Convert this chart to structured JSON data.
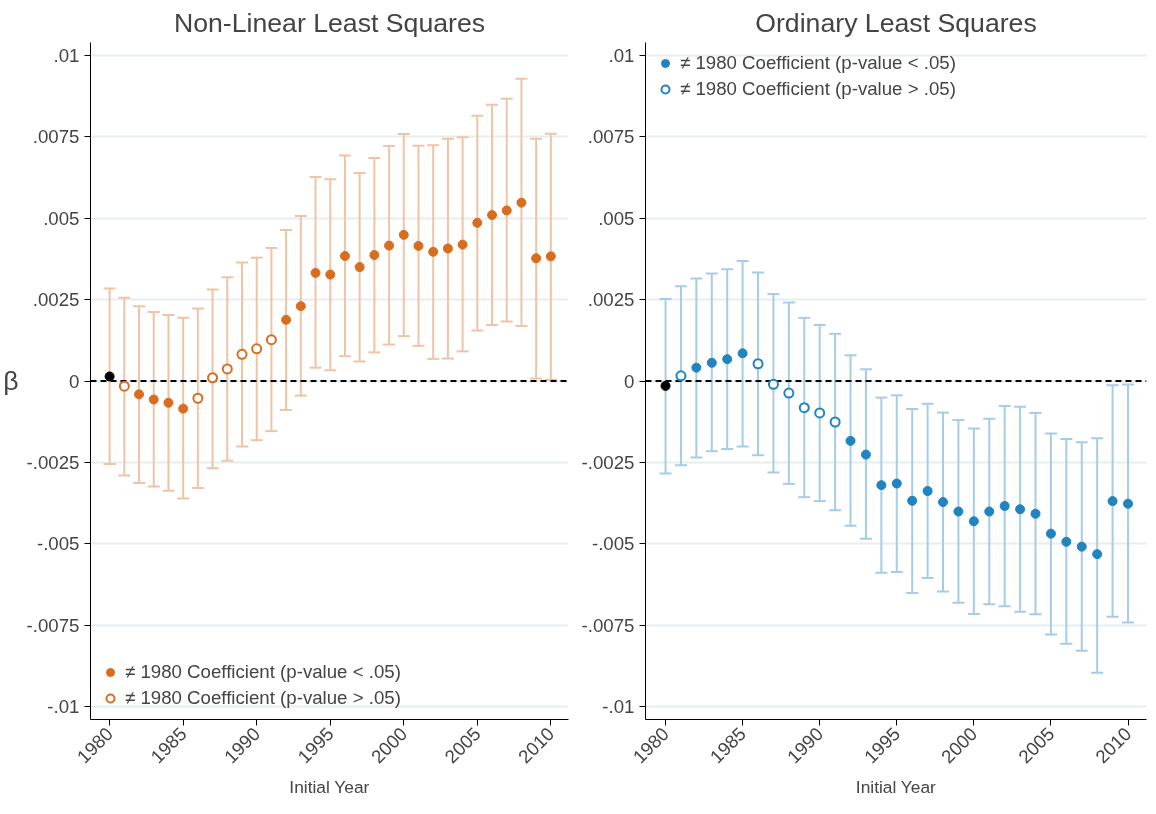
{
  "chart_data": [
    {
      "type": "scatter",
      "title": "Non-Linear Least Squares",
      "xlabel": "Initial Year",
      "ylabel": "β",
      "xlim": [
        1978.7,
        2011.2
      ],
      "ylim": [
        -0.0104,
        0.0104
      ],
      "xticks": [
        1980,
        1985,
        1990,
        1995,
        2000,
        2005,
        2010
      ],
      "yticks": [
        {
          "value": 0.01,
          "label": ".01"
        },
        {
          "value": 0.0075,
          "label": ".0075"
        },
        {
          "value": 0.005,
          "label": ".005"
        },
        {
          "value": 0.0025,
          "label": ".0025"
        },
        0,
        {
          "value": -0.0025,
          "label": "-.0025"
        },
        {
          "value": -0.005,
          "label": "-.005"
        },
        {
          "value": -0.0075,
          "label": "-.0075"
        },
        {
          "value": -0.01,
          "label": "-.01"
        }
      ],
      "grid": "y",
      "legend": "bottom left",
      "marker": "circle",
      "ref_lines": [
        {
          "axis": "y",
          "value": 0,
          "color": "#000000",
          "line_style": "dashed"
        }
      ],
      "series": [
        {
          "color": "#000000",
          "x": [
            1980
          ],
          "values": [
            0.00014
          ],
          "errors": [
            [
              -0.00255,
              0.00284
            ]
          ]
        },
        {
          "name": "≠ 1980 Coefficient (p-value < .05)",
          "color": "#d96d1f",
          "marker": "circle",
          "x": [
            1982,
            1983,
            1984,
            1985,
            1992,
            1993,
            1994,
            1995,
            1996,
            1997,
            1998,
            1999,
            2000,
            2001,
            2002,
            2003,
            2004,
            2005,
            2006,
            2007,
            2008,
            2009,
            2010
          ],
          "values": [
            -0.00041,
            -0.00057,
            -0.00067,
            -0.00085,
            0.00188,
            0.0023,
            0.00332,
            0.00327,
            0.00384,
            0.0035,
            0.00387,
            0.00416,
            0.00449,
            0.00415,
            0.00397,
            0.00407,
            0.00419,
            0.00486,
            0.0051,
            0.00524,
            0.00548,
            0.00377,
            0.00383
          ],
          "errors": [
            [
              -0.00313,
              0.0023
            ],
            [
              -0.00324,
              0.00212
            ],
            [
              -0.00337,
              0.00203
            ],
            [
              -0.00361,
              0.00194
            ],
            [
              -0.00089,
              0.00464
            ],
            [
              -0.00045,
              0.00507
            ],
            [
              0.00041,
              0.00627
            ],
            [
              0.00033,
              0.0062
            ],
            [
              0.00076,
              0.00693
            ],
            [
              0.0006,
              0.00639
            ],
            [
              0.00088,
              0.00685
            ],
            [
              0.00112,
              0.00722
            ],
            [
              0.00138,
              0.00759
            ],
            [
              0.00108,
              0.00723
            ],
            [
              0.00068,
              0.00724
            ],
            [
              0.00069,
              0.00744
            ],
            [
              0.00091,
              0.00749
            ],
            [
              0.00155,
              0.00815
            ],
            [
              0.00172,
              0.00849
            ],
            [
              0.00183,
              0.00867
            ],
            [
              0.00169,
              0.00929
            ],
            [
              8e-05,
              0.00744
            ],
            [
              4e-05,
              0.0076
            ]
          ]
        },
        {
          "name": "≠ 1980 Coefficient (p-value > .05)",
          "color": "#d96d1f",
          "marker": "circle_open",
          "x": [
            1981,
            1986,
            1987,
            1988,
            1989,
            1990,
            1991
          ],
          "values": [
            -0.00016,
            -0.00053,
            0.0001,
            0.00037,
            0.00082,
            0.00099,
            0.00127
          ],
          "errors": [
            [
              -0.0029,
              0.00256
            ],
            [
              -0.00329,
              0.00223
            ],
            [
              -0.00268,
              0.00281
            ],
            [
              -0.00245,
              0.00319
            ],
            [
              -0.00201,
              0.00364
            ],
            [
              -0.00182,
              0.00379
            ],
            [
              -0.00154,
              0.00409
            ]
          ]
        }
      ]
    },
    {
      "type": "scatter",
      "title": "Ordinary Least Squares",
      "xlabel": "Initial Year",
      "xlim": [
        1978.7,
        2011.2
      ],
      "ylim": [
        -0.0104,
        0.0104
      ],
      "xticks": [
        1980,
        1985,
        1990,
        1995,
        2000,
        2005,
        2010
      ],
      "yticks": [
        {
          "value": 0.01,
          "label": ".01"
        },
        {
          "value": 0.0075,
          "label": ".0075"
        },
        {
          "value": 0.005,
          "label": ".005"
        },
        {
          "value": 0.0025,
          "label": ".0025"
        },
        0,
        {
          "value": -0.0025,
          "label": "-.0025"
        },
        {
          "value": -0.005,
          "label": "-.005"
        },
        {
          "value": -0.0075,
          "label": "-.0075"
        },
        {
          "value": -0.01,
          "label": "-.01"
        }
      ],
      "grid": "y",
      "legend": "top left",
      "marker": "circle",
      "ref_lines": [
        {
          "axis": "y",
          "value": 0,
          "color": "#000000",
          "line_style": "dashed"
        }
      ],
      "series": [
        {
          "color": "#000000",
          "x": [
            1980
          ],
          "values": [
            -0.00015
          ],
          "errors": [
            [
              -0.00284,
              0.00252
            ]
          ]
        },
        {
          "name": "≠ 1980 Coefficient (p-value < .05)",
          "color": "#1f84bf",
          "marker": "circle",
          "x": [
            1982,
            1983,
            1984,
            1985,
            1992,
            1993,
            1994,
            1995,
            1996,
            1997,
            1998,
            1999,
            2000,
            2001,
            2002,
            2003,
            2004,
            2005,
            2006,
            2007,
            2008,
            2009,
            2010
          ],
          "values": [
            0.00041,
            0.00056,
            0.00067,
            0.00085,
            -0.00184,
            -0.00226,
            -0.0032,
            -0.00315,
            -0.00368,
            -0.00338,
            -0.00372,
            -0.00401,
            -0.00431,
            -0.00401,
            -0.00384,
            -0.00394,
            -0.00408,
            -0.00469,
            -0.00494,
            -0.00509,
            -0.00532,
            -0.00369,
            -0.00377
          ],
          "errors": [
            [
              -0.00235,
              0.00315
            ],
            [
              -0.00216,
              0.0033
            ],
            [
              -0.00209,
              0.00343
            ],
            [
              -0.00201,
              0.00369
            ],
            [
              -0.00445,
              0.00079
            ],
            [
              -0.00485,
              0.00036
            ],
            [
              -0.00589,
              -0.00051
            ],
            [
              -0.00587,
              -0.00044
            ],
            [
              -0.00651,
              -0.00086
            ],
            [
              -0.00605,
              -0.0007
            ],
            [
              -0.00647,
              -0.00097
            ],
            [
              -0.00681,
              -0.0012
            ],
            [
              -0.00716,
              -0.00146
            ],
            [
              -0.00686,
              -0.00116
            ],
            [
              -0.00692,
              -0.00077
            ],
            [
              -0.00709,
              -0.00079
            ],
            [
              -0.00717,
              -0.00098
            ],
            [
              -0.00779,
              -0.00161
            ],
            [
              -0.00807,
              -0.00178
            ],
            [
              -0.00829,
              -0.00188
            ],
            [
              -0.00896,
              -0.00176
            ],
            [
              -0.00724,
              -0.00013
            ],
            [
              -0.00742,
              -0.00011
            ]
          ]
        },
        {
          "name": "≠ 1980 Coefficient (p-value > .05)",
          "color": "#1f84bf",
          "marker": "circle_open",
          "x": [
            1981,
            1986,
            1987,
            1988,
            1989,
            1990,
            1991
          ],
          "values": [
            0.00016,
            0.00053,
            -0.0001,
            -0.00037,
            -0.00082,
            -0.00098,
            -0.00126
          ],
          "errors": [
            [
              -0.00259,
              0.00291
            ],
            [
              -0.00228,
              0.00333
            ],
            [
              -0.00281,
              0.00267
            ],
            [
              -0.00316,
              0.00241
            ],
            [
              -0.00357,
              0.00194
            ],
            [
              -0.00369,
              0.00172
            ],
            [
              -0.00397,
              0.00145
            ]
          ]
        }
      ]
    }
  ]
}
